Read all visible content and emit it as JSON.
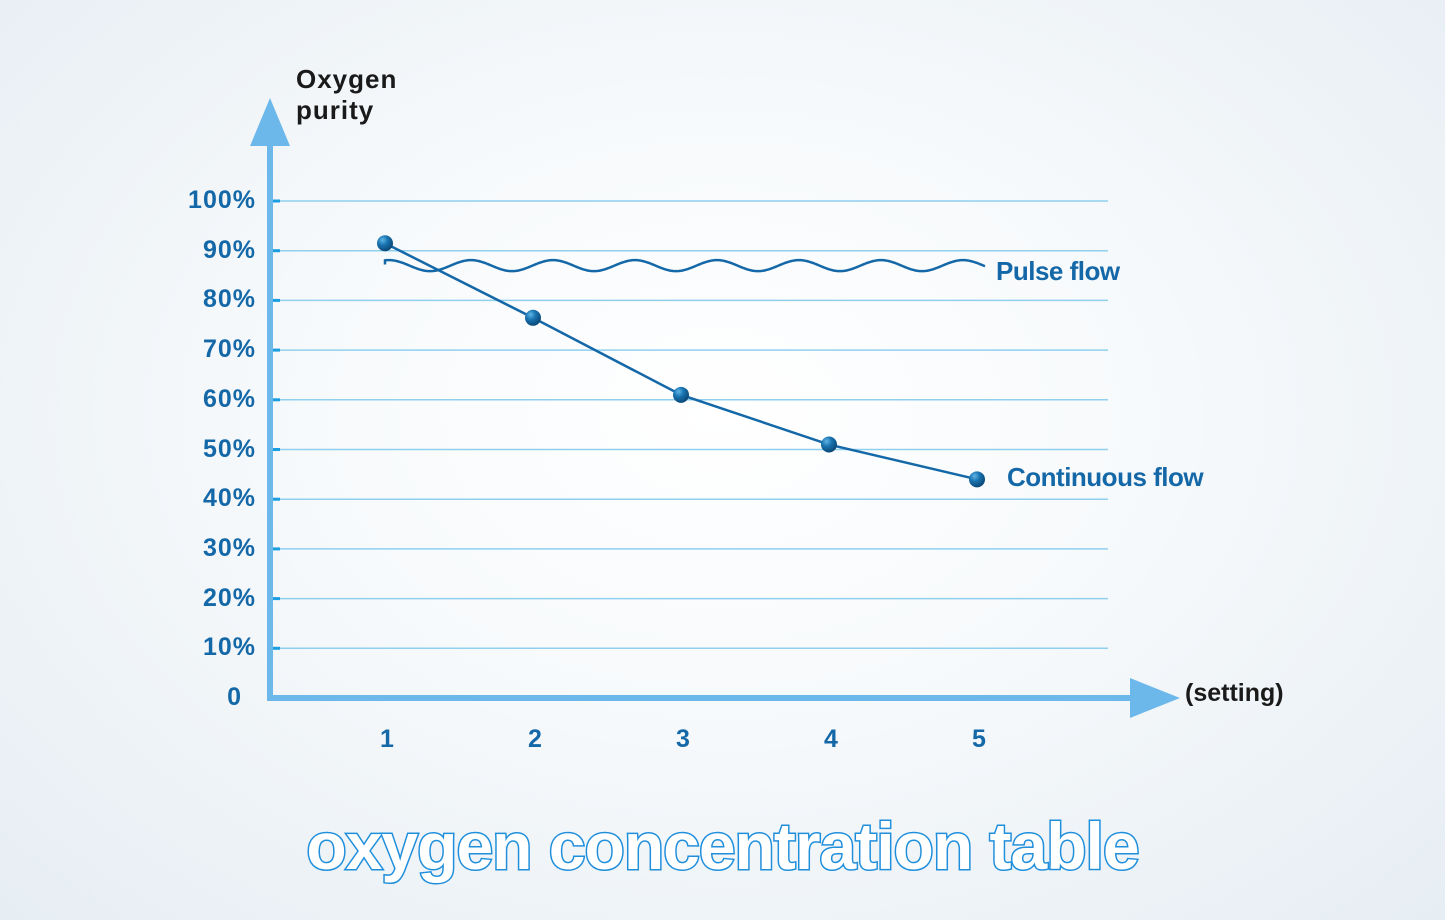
{
  "chart_data": {
    "type": "line",
    "title": "oxygen concentration table",
    "xlabel": "(setting)",
    "ylabel": "Oxygen purity",
    "ylabel_lines": [
      "Oxygen",
      "purity"
    ],
    "x": [
      1,
      2,
      3,
      4,
      5
    ],
    "x_tick_labels": [
      "1",
      "2",
      "3",
      "4",
      "5"
    ],
    "y_tick_labels": [
      "0",
      "10%",
      "20%",
      "30%",
      "40%",
      "50%",
      "60%",
      "70%",
      "80%",
      "90%",
      "100%"
    ],
    "ylim": [
      0,
      100
    ],
    "grid": true,
    "series": [
      {
        "name": "Continuous flow",
        "values": [
          91.5,
          76.5,
          61,
          51,
          44
        ],
        "marker": "sphere"
      },
      {
        "name": "Pulse flow",
        "values": [
          87,
          87,
          87,
          87,
          87
        ],
        "style": "wavy",
        "approx_range": [
          86,
          88
        ]
      }
    ],
    "legend_position": "inline-right",
    "colors": {
      "line": "#1468a8",
      "axis": "#6cb8ea",
      "grid": "#8fd0ef",
      "title_stroke": "#1f8fdc",
      "tick_text": "#1468a8"
    }
  }
}
